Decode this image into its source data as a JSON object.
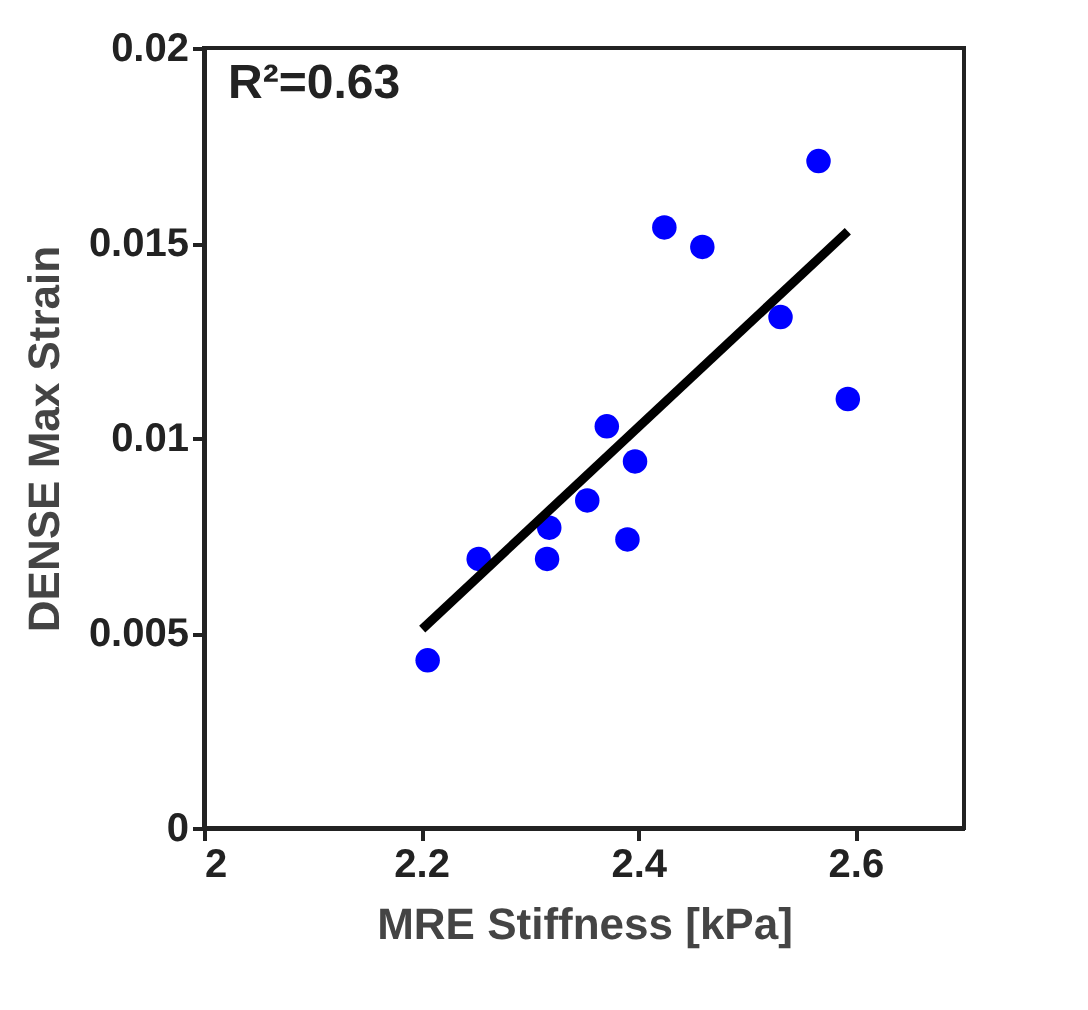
{
  "chart_data": {
    "type": "scatter",
    "xlabel": "MRE Stiffness [kPa]",
    "ylabel": "DENSE Max Strain",
    "annotations": [
      "R²=0.63"
    ],
    "xlim": [
      2,
      2.7
    ],
    "xticks": [
      2,
      2.2,
      2.4,
      2.6
    ],
    "ylim": [
      0,
      0.02
    ],
    "yticks": [
      0,
      0.005,
      0.01,
      0.015,
      0.02
    ],
    "grid": false,
    "series": [
      {
        "marker": "circle",
        "color": "#0000ff",
        "x": [
          2.206,
          2.253,
          2.318,
          2.316,
          2.353,
          2.371,
          2.39,
          2.397,
          2.424,
          2.459,
          2.531,
          2.566,
          2.593
        ],
        "values": [
          0.0043,
          0.0069,
          0.0077,
          0.0069,
          0.0084,
          0.0103,
          0.0074,
          0.0094,
          0.0154,
          0.0149,
          0.0131,
          0.0171,
          0.011
        ]
      },
      {
        "type": "line",
        "color": "#000000",
        "x": [
          2.201,
          2.593
        ],
        "values": [
          0.0051,
          0.0153
        ]
      }
    ]
  }
}
